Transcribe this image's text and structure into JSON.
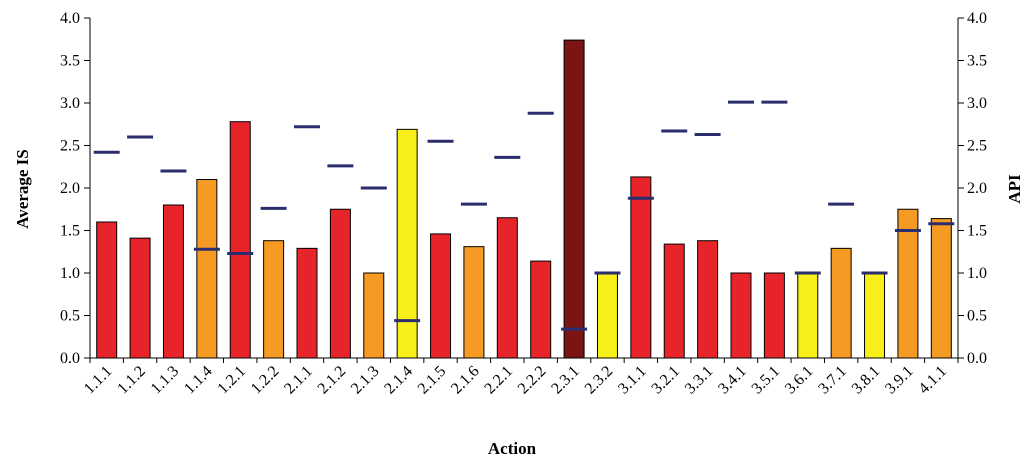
{
  "chart_data": {
    "type": "bar",
    "xlabel": "Action",
    "ylabel": "Average IS",
    "ylabel_right": "API",
    "ylim": [
      0,
      4.0
    ],
    "ylim_right": [
      0,
      4.0
    ],
    "yticks": [
      "0.0",
      "0.5",
      "1.0",
      "1.5",
      "2.0",
      "2.5",
      "3.0",
      "3.5",
      "4.0"
    ],
    "grid": false,
    "categories": [
      "1.1.1",
      "1.1.2",
      "1.1.3",
      "1.1.4",
      "1.2.1",
      "1.2.2",
      "2.1.1",
      "2.1.2",
      "2.1.3",
      "2.1.4",
      "2.1.5",
      "2.1.6",
      "2.2.1",
      "2.2.2",
      "2.3.1",
      "2.3.2",
      "3.1.1",
      "3.2.1",
      "3.3.1",
      "3.4.1",
      "3.5.1",
      "3.6.1",
      "3.7.1",
      "3.8.1",
      "3.9.1",
      "4.1.1"
    ],
    "series": [
      {
        "axis": "left",
        "kind": "bar",
        "values": [
          1.6,
          1.41,
          1.8,
          2.1,
          2.78,
          1.38,
          1.29,
          1.75,
          1.0,
          2.69,
          1.46,
          1.31,
          1.65,
          1.14,
          3.74,
          1.0,
          2.13,
          1.34,
          1.38,
          1.0,
          1.0,
          1.0,
          1.29,
          1.0,
          1.75,
          1.64
        ],
        "colors": [
          "#e8242b",
          "#e8242b",
          "#e8242b",
          "#f59a22",
          "#e8242b",
          "#f59a22",
          "#e8242b",
          "#e8242b",
          "#f59a22",
          "#f7ee1a",
          "#e8242b",
          "#f59a22",
          "#e8242b",
          "#e8242b",
          "#7a1514",
          "#f7ee1a",
          "#e8242b",
          "#e8242b",
          "#e8242b",
          "#e8242b",
          "#e8242b",
          "#f7ee1a",
          "#f59a22",
          "#f7ee1a",
          "#f59a22",
          "#f59a22"
        ]
      },
      {
        "axis": "right",
        "kind": "marker",
        "color": "#2b2e6e",
        "values": [
          2.42,
          2.6,
          2.2,
          1.28,
          1.23,
          1.76,
          2.72,
          2.26,
          2.0,
          0.44,
          2.55,
          1.81,
          2.36,
          2.88,
          0.34,
          1.0,
          1.88,
          2.67,
          2.63,
          3.01,
          3.01,
          1.0,
          1.81,
          1.0,
          1.5,
          1.58
        ]
      }
    ]
  }
}
